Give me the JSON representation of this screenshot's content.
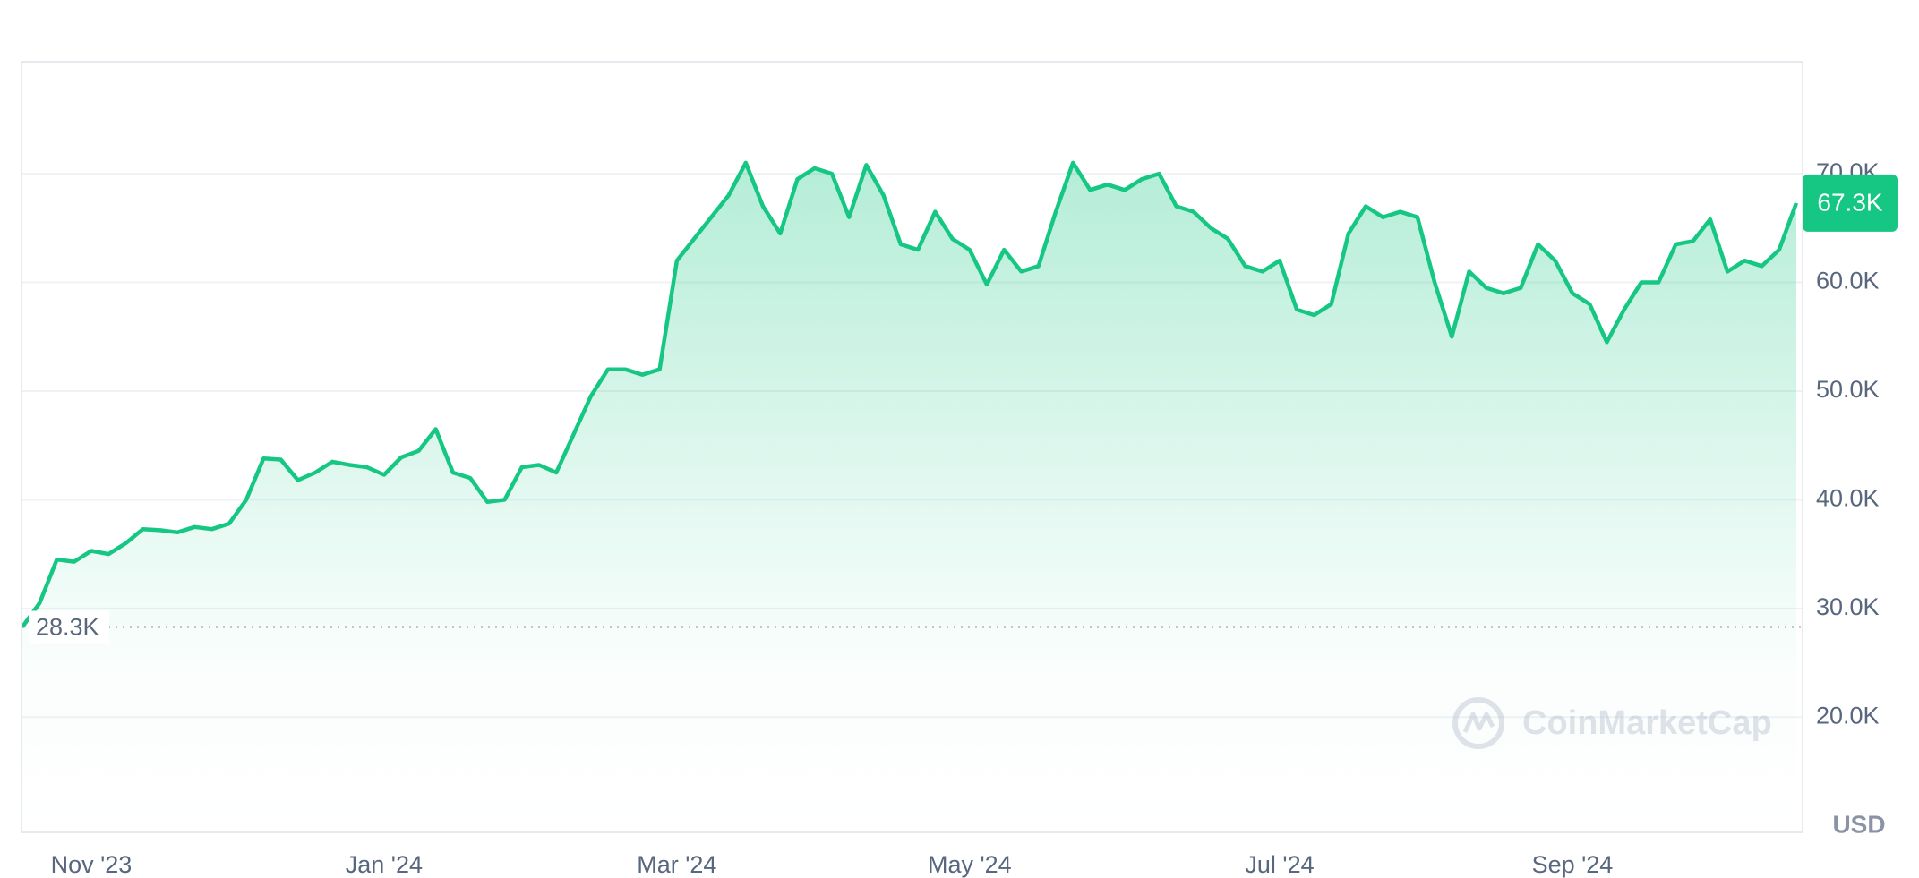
{
  "chart_data": {
    "type": "area",
    "color": "#16c784",
    "grid": true,
    "y_label": "USD",
    "watermark": "CoinMarketCap",
    "categories": [
      null,
      null,
      null,
      null,
      "Nov '23",
      null,
      null,
      null,
      null,
      null,
      null,
      null,
      null,
      null,
      null,
      null,
      null,
      null,
      null,
      null,
      null,
      "Jan '24",
      null,
      null,
      null,
      null,
      null,
      null,
      null,
      null,
      null,
      null,
      null,
      null,
      null,
      null,
      null,
      null,
      "Mar '24",
      null,
      null,
      null,
      null,
      null,
      null,
      null,
      null,
      null,
      null,
      null,
      null,
      null,
      null,
      null,
      null,
      "May '24",
      null,
      null,
      null,
      null,
      null,
      null,
      null,
      null,
      null,
      null,
      null,
      null,
      null,
      null,
      null,
      null,
      null,
      "Jul '24",
      null,
      null,
      null,
      null,
      null,
      null,
      null,
      null,
      null,
      null,
      null,
      null,
      null,
      null,
      null,
      null,
      "Sep '24",
      null,
      null,
      null,
      null,
      null,
      null,
      null,
      null,
      null,
      null,
      null,
      null,
      null
    ],
    "values": [
      28300,
      30500,
      34500,
      34300,
      35300,
      35000,
      36000,
      37300,
      37200,
      37000,
      37500,
      37300,
      37800,
      40000,
      43800,
      43700,
      41800,
      42500,
      43500,
      43200,
      43000,
      42300,
      43900,
      44500,
      46500,
      42500,
      42000,
      39800,
      40000,
      43000,
      43200,
      42500,
      46000,
      49500,
      52000,
      52000,
      51500,
      52000,
      62000,
      64000,
      66000,
      68000,
      71000,
      67000,
      64500,
      69500,
      70500,
      70000,
      66000,
      70800,
      68000,
      63500,
      63000,
      66500,
      64000,
      63000,
      59800,
      63000,
      61000,
      61500,
      66500,
      71000,
      68500,
      69000,
      68500,
      69500,
      70000,
      67000,
      66500,
      65000,
      64000,
      61500,
      61000,
      62000,
      57500,
      57000,
      58000,
      64500,
      67000,
      66000,
      66500,
      66000,
      60000,
      55000,
      61000,
      59500,
      59000,
      59500,
      63500,
      62000,
      59000,
      58000,
      54500,
      57500,
      60000,
      60000,
      63500,
      63800,
      65800,
      61000,
      62000,
      61500,
      63000,
      67300
    ],
    "ylim": [
      9400,
      80300
    ],
    "yticks": [
      {
        "value": 20000,
        "label": "20.0K"
      },
      {
        "value": 30000,
        "label": "30.0K"
      },
      {
        "value": 40000,
        "label": "40.0K"
      },
      {
        "value": 50000,
        "label": "50.0K"
      },
      {
        "value": 60000,
        "label": "60.0K"
      },
      {
        "value": 70000,
        "label": "70.0K"
      }
    ],
    "annotations": [
      {
        "value": 28300,
        "label": "28.3K"
      },
      {
        "value": 67300,
        "label": "67.3K"
      }
    ]
  }
}
